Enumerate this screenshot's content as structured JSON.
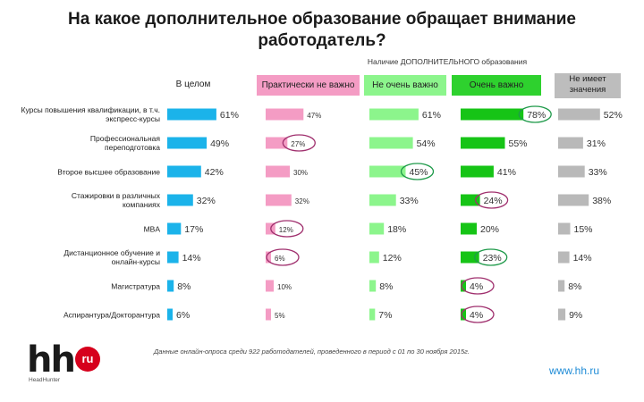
{
  "title_line1": "На какое дополнительное образование обращает внимание",
  "title_line2": "работодатель?",
  "subtitle": "Наличие ДОПОЛНИТЕЛЬНОГО образования",
  "footnote": "Данные онлайн-опроса среди 922 работодателей, проведенного в период с 01 по 30 ноября 2015г.",
  "logo": {
    "hh": "hh",
    "ru": "ru",
    "sub": "HeadHunter"
  },
  "site": "www.hh.ru",
  "colors": {
    "overall": "#1bb3ea",
    "practically": "#f49cc4",
    "notvery": "#8cf58c",
    "very": "#16c416",
    "none": "#b9b9b9",
    "circle_pink": "#a0306e",
    "circle_green": "#1f9a4a"
  },
  "chart_data": {
    "type": "bar",
    "categories": [
      "Курсы повышения квалификации, в т.ч. экспресс-курсы",
      "Профессиональная переподготовка",
      "Второе высшее образование",
      "Стажировки в различных компаниях",
      "MBA",
      "Дистанционное обучение и онлайн-курсы",
      "Магистратура",
      "Аспирантура/Докторантура"
    ],
    "series": [
      {
        "name": "В целом",
        "values": [
          61,
          49,
          42,
          32,
          17,
          14,
          8,
          6
        ],
        "labels": [
          "61%",
          "49%",
          "42%",
          "32%",
          "17%",
          "14%",
          "8%",
          "6%"
        ]
      },
      {
        "name": "Практически не важно",
        "values": [
          47,
          27,
          30,
          32,
          12,
          6,
          10,
          5
        ],
        "labels": [
          "47%",
          "27%",
          "30%",
          "32%",
          "12%",
          "6%",
          "10%",
          "5%"
        ]
      },
      {
        "name": "Не очень важно",
        "values": [
          61,
          54,
          45,
          33,
          18,
          12,
          8,
          7
        ],
        "labels": [
          "61%",
          "54%",
          "45%",
          "33%",
          "18%",
          "12%",
          "8%",
          "7%"
        ]
      },
      {
        "name": "Очень важно",
        "values": [
          78,
          55,
          41,
          24,
          20,
          23,
          4,
          4
        ],
        "labels": [
          "78%",
          "55%",
          "41%",
          "24%",
          "20%",
          "23%",
          "4%",
          "4%"
        ]
      },
      {
        "name": "Не имеет значения",
        "values": [
          52,
          31,
          33,
          38,
          15,
          14,
          8,
          9
        ],
        "labels": [
          "52%",
          "31%",
          "33%",
          "38%",
          "15%",
          "14%",
          "8%",
          "9%"
        ]
      }
    ],
    "highlights": [
      {
        "series": 1,
        "row": 1,
        "color": "pink"
      },
      {
        "series": 1,
        "row": 4,
        "color": "pink"
      },
      {
        "series": 1,
        "row": 5,
        "color": "pink"
      },
      {
        "series": 2,
        "row": 2,
        "color": "green"
      },
      {
        "series": 3,
        "row": 0,
        "color": "green"
      },
      {
        "series": 3,
        "row": 3,
        "color": "pink"
      },
      {
        "series": 3,
        "row": 5,
        "color": "green"
      },
      {
        "series": 3,
        "row": 6,
        "color": "pink"
      },
      {
        "series": 3,
        "row": 7,
        "color": "pink"
      }
    ],
    "ylim": [
      0,
      100
    ],
    "grid": false,
    "legend": "top"
  }
}
